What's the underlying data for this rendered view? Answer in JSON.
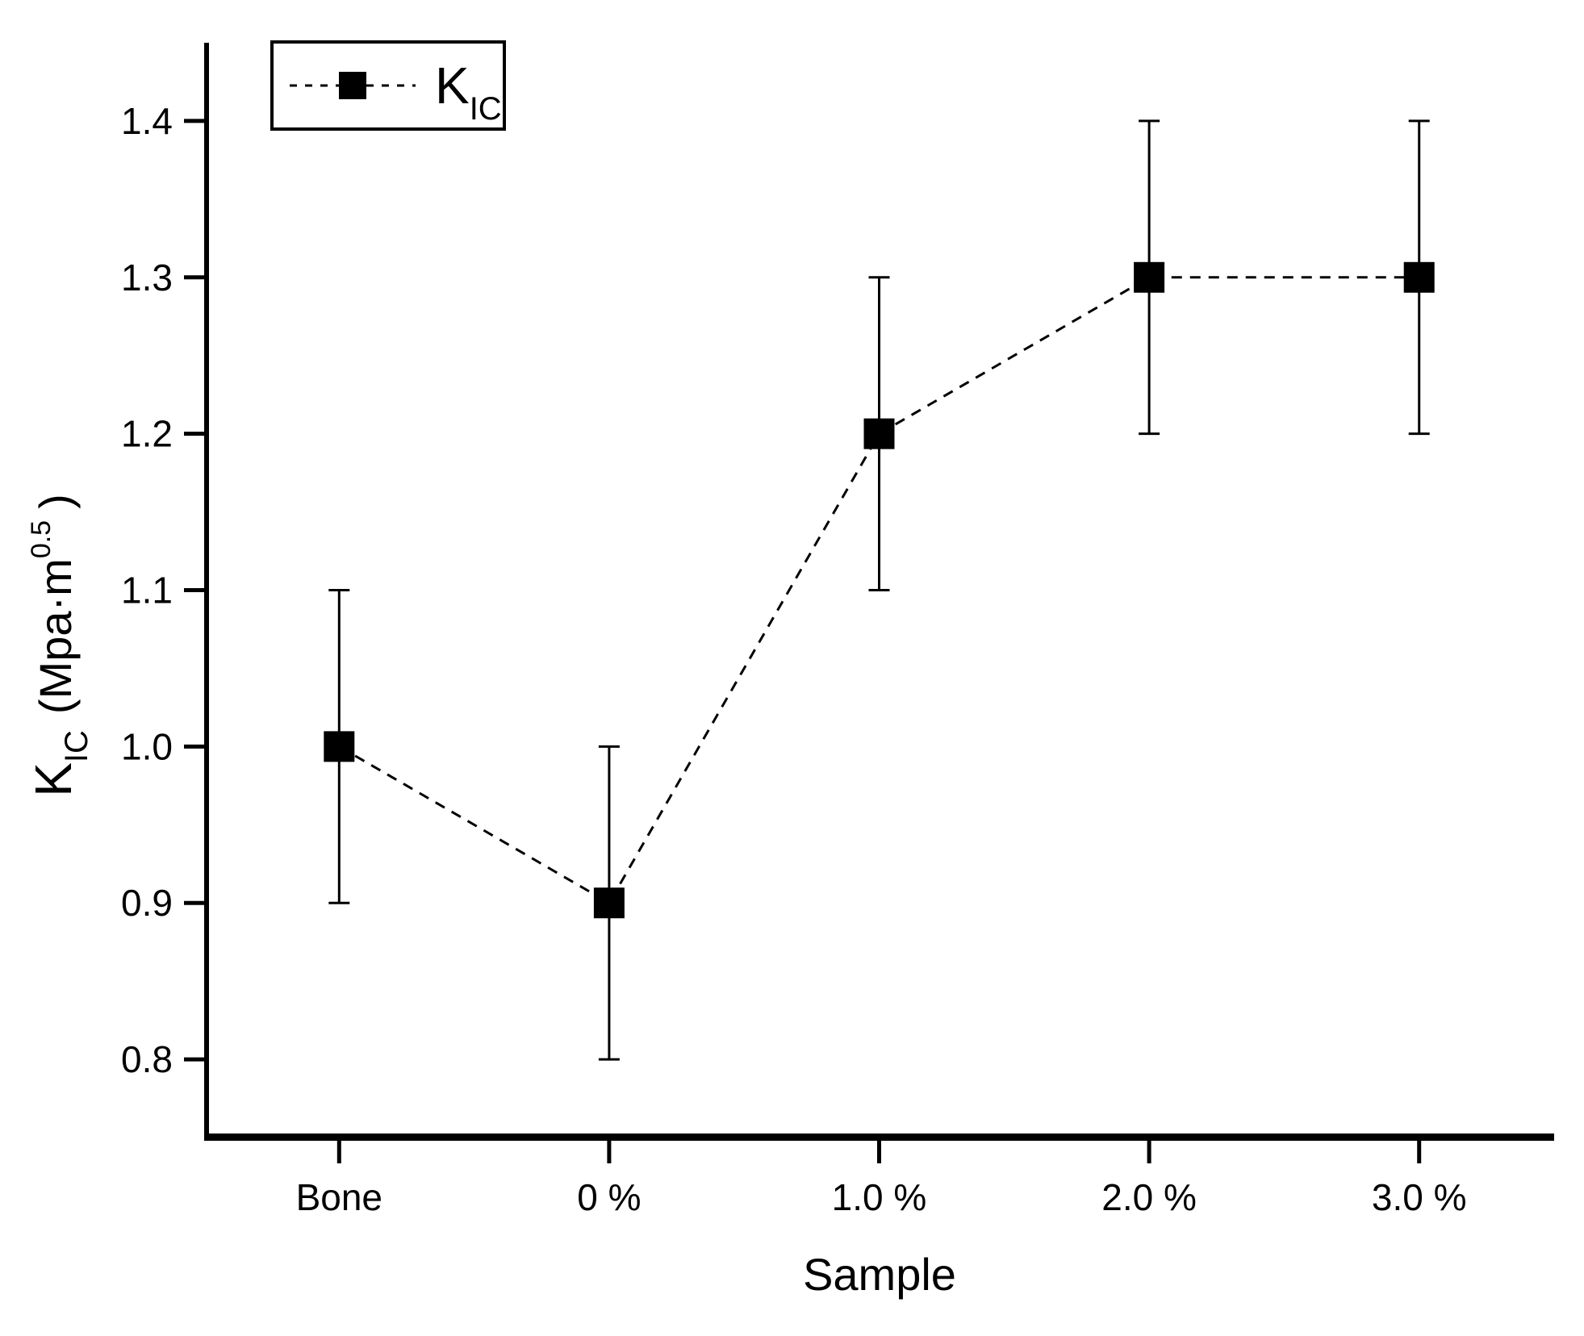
{
  "colors": {
    "foreground": "#000000",
    "background": "#ffffff"
  },
  "chart_data": {
    "type": "line",
    "title": "",
    "xlabel": "Sample",
    "ylabel": {
      "symbol": "K",
      "symbol_sub": "IC",
      "units_open": "(Mpa·m",
      "units_exp": "0.5",
      "units_close": ")"
    },
    "categories": [
      "Bone",
      "0 %",
      "1.0 %",
      "2.0 %",
      "3.0 %"
    ],
    "series": [
      {
        "name": "KIC",
        "legend_symbol": "K",
        "legend_symbol_sub": "IC",
        "values": [
          1.0,
          0.9,
          1.2,
          1.3,
          1.3
        ],
        "errors": [
          0.1,
          0.1,
          0.1,
          0.1,
          0.1
        ],
        "marker": "filled-square",
        "line_style": "dashed",
        "color": "#000000"
      }
    ],
    "ylim": [
      0.75,
      1.45
    ],
    "yticks": [
      "0.8",
      "0.9",
      "1.0",
      "1.1",
      "1.2",
      "1.3",
      "1.4"
    ],
    "grid": false,
    "legend_position": "top-left"
  }
}
